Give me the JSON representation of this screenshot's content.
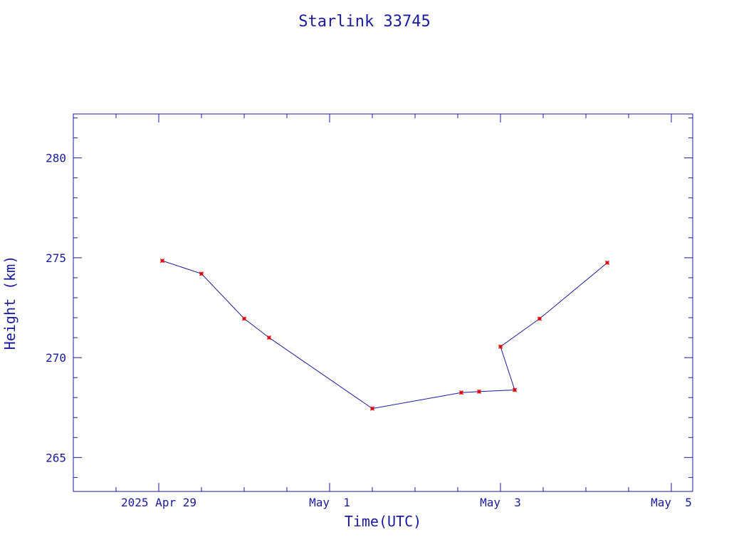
{
  "chart_data": {
    "type": "line",
    "title": "Starlink 33745",
    "xlabel": "Time(UTC)",
    "ylabel": "Height (km)",
    "ylim": [
      263.3,
      282.2
    ],
    "xlim": [
      "2025-04-28T00:00Z",
      "2025-05-05T06:00Z"
    ],
    "x_tick_labels": [
      "2025 Apr 29",
      "May  1",
      "May  3",
      "May  5"
    ],
    "y_tick_labels": [
      "265",
      "270",
      "275",
      "280"
    ],
    "grid": false,
    "series": [
      {
        "x": [
          "2025-04-29T01:00Z",
          "2025-04-29T12:00Z",
          "2025-04-30T00:00Z",
          "2025-04-30T07:00Z",
          "2025-05-01T12:00Z",
          "2025-05-02T13:00Z",
          "2025-05-02T18:00Z",
          "2025-05-03T04:00Z",
          "2025-05-03T00:00Z",
          "2025-05-03T11:00Z",
          "2025-05-04T06:00Z"
        ],
        "y": [
          274.85,
          274.2,
          271.95,
          271.0,
          267.45,
          268.25,
          268.3,
          268.38,
          270.55,
          271.95,
          274.75
        ]
      }
    ],
    "colors": {
      "axis": "#1a1a9c",
      "line": "#1a1a9c",
      "marker": "#dd0000"
    }
  }
}
